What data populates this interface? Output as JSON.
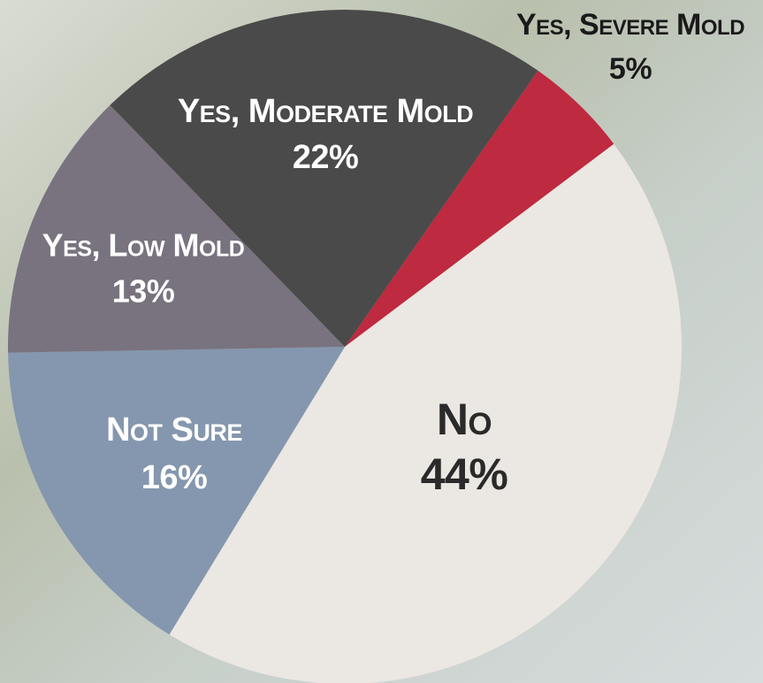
{
  "chart_data": {
    "type": "pie",
    "categories": [
      "Yes, Severe Mold",
      "No",
      "Not Sure",
      "Yes, Low Mold",
      "Yes, Moderate Mold"
    ],
    "values": [
      5,
      44,
      16,
      13,
      22
    ],
    "value_labels": [
      "5%",
      "44%",
      "16%",
      "13%",
      "22%"
    ],
    "colors": [
      "#be2a3f",
      "#ebe7e2",
      "#8497ae",
      "#79737f",
      "#4a4a4a"
    ]
  }
}
